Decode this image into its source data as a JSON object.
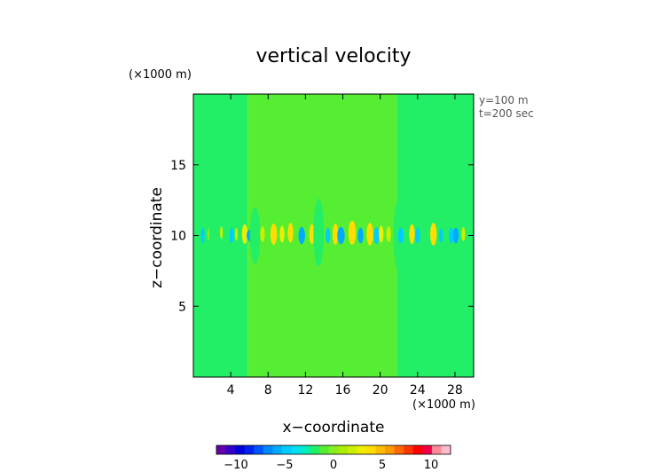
{
  "chart_data": {
    "type": "heatmap",
    "title": "vertical velocity",
    "xlabel": "x−coordinate",
    "ylabel": "z−coordinate",
    "x_unit": "(×1000 m)",
    "y_unit": "(×1000 m)",
    "annotations": [
      "y=100 m",
      "t=200 sec"
    ],
    "xlim": [
      0,
      30
    ],
    "ylim": [
      0,
      20
    ],
    "xticks": [
      4,
      8,
      12,
      16,
      20,
      24,
      28
    ],
    "xtick_labels": [
      "4",
      "8",
      "12",
      "16",
      "20",
      "24",
      "28"
    ],
    "yticks": [
      5,
      10,
      15
    ],
    "ytick_labels": [
      "5",
      "10",
      "15"
    ],
    "grid": false,
    "colorbar": {
      "range": [
        -12,
        12
      ],
      "ticks": [
        -10,
        -5,
        0,
        5,
        10
      ],
      "tick_labels": [
        "−10",
        "−5",
        "0",
        "5",
        "10"
      ],
      "colors": [
        "#6600aa",
        "#3300cc",
        "#0000dd",
        "#0022ee",
        "#0055ff",
        "#0088ff",
        "#00aaff",
        "#00ccff",
        "#00e0f0",
        "#00eebb",
        "#22ee66",
        "#55ee33",
        "#88ee22",
        "#aaee00",
        "#ccee00",
        "#eeee00",
        "#ffdd00",
        "#ffbb00",
        "#ff9900",
        "#ff6600",
        "#ff3300",
        "#ff0000",
        "#ee0044",
        "#ff8899",
        "#ffbbcc"
      ]
    },
    "background_regions": [
      {
        "x": [
          0,
          5.8
        ],
        "value": 0,
        "color": "#22ee66"
      },
      {
        "x": [
          5.8,
          21.8
        ],
        "value": 1,
        "color": "#55ee33"
      },
      {
        "x": [
          21.8,
          30
        ],
        "value": 0,
        "color": "#22ee66"
      }
    ],
    "features": [
      {
        "x": 1.0,
        "z": 10.0,
        "w": 0.2,
        "h": 0.55,
        "value": -2,
        "color": "#00ccff"
      },
      {
        "x": 1.7,
        "z": 10.1,
        "w": 0.18,
        "h": 0.45,
        "value": 3,
        "color": "#ccee00"
      },
      {
        "x": 2.2,
        "z": 9.9,
        "w": 0.2,
        "h": 0.55,
        "value": -2,
        "color": "#00ccff"
      },
      {
        "x": 2.1,
        "z": 10.2,
        "w": 0.45,
        "h": 2.1,
        "value": 0,
        "color": "#22ee66"
      },
      {
        "x": 3.0,
        "z": 10.2,
        "w": 0.15,
        "h": 0.45,
        "value": 3,
        "color": "#ccee00"
      },
      {
        "x": 4.1,
        "z": 10.0,
        "w": 0.22,
        "h": 0.55,
        "value": -2,
        "color": "#00ccff"
      },
      {
        "x": 4.6,
        "z": 10.1,
        "w": 0.15,
        "h": 0.45,
        "value": 3,
        "color": "#ccee00"
      },
      {
        "x": 5.5,
        "z": 10.1,
        "w": 0.3,
        "h": 0.7,
        "value": 5,
        "color": "#eeee00"
      },
      {
        "x": 6.3,
        "z": 10.0,
        "w": 0.6,
        "h": 0.5,
        "value": -3,
        "color": "#00aaff"
      },
      {
        "x": 6.6,
        "z": 10.0,
        "w": 0.55,
        "h": 2.0,
        "value": 0,
        "color": "#22ee66"
      },
      {
        "x": 7.4,
        "z": 10.1,
        "w": 0.25,
        "h": 0.55,
        "value": 4,
        "color": "#ccee00"
      },
      {
        "x": 8.6,
        "z": 10.1,
        "w": 0.35,
        "h": 0.75,
        "value": 6,
        "color": "#ffdd00"
      },
      {
        "x": 9.5,
        "z": 10.1,
        "w": 0.25,
        "h": 0.6,
        "value": 4,
        "color": "#eeee00"
      },
      {
        "x": 10.4,
        "z": 10.2,
        "w": 0.3,
        "h": 0.7,
        "value": 5,
        "color": "#ffdd00"
      },
      {
        "x": 11.6,
        "z": 10.0,
        "w": 0.35,
        "h": 0.6,
        "value": -3,
        "color": "#00aaff"
      },
      {
        "x": 12.7,
        "z": 10.1,
        "w": 0.3,
        "h": 0.7,
        "value": 6,
        "color": "#ffdd00"
      },
      {
        "x": 13.4,
        "z": 10.2,
        "w": 0.55,
        "h": 2.4,
        "value": 0,
        "color": "#22ee66"
      },
      {
        "x": 14.4,
        "z": 10.0,
        "w": 0.25,
        "h": 0.55,
        "value": -2,
        "color": "#00ccff"
      },
      {
        "x": 15.2,
        "z": 10.1,
        "w": 0.3,
        "h": 0.75,
        "value": 6,
        "color": "#ffdd00"
      },
      {
        "x": 15.8,
        "z": 10.0,
        "w": 0.4,
        "h": 0.6,
        "value": -3,
        "color": "#00aaff"
      },
      {
        "x": 17.0,
        "z": 10.2,
        "w": 0.4,
        "h": 0.85,
        "value": 8,
        "color": "#ffdd00"
      },
      {
        "x": 17.9,
        "z": 10.0,
        "w": 0.3,
        "h": 0.55,
        "value": -3,
        "color": "#00aaff"
      },
      {
        "x": 18.9,
        "z": 10.1,
        "w": 0.35,
        "h": 0.8,
        "value": 7,
        "color": "#ffdd00"
      },
      {
        "x": 19.6,
        "z": 10.0,
        "w": 0.3,
        "h": 0.6,
        "value": -2,
        "color": "#00ccff"
      },
      {
        "x": 20.1,
        "z": 10.1,
        "w": 0.25,
        "h": 0.6,
        "value": 4,
        "color": "#eeee00"
      },
      {
        "x": 20.9,
        "z": 10.1,
        "w": 0.25,
        "h": 0.55,
        "value": 3,
        "color": "#ccee00"
      },
      {
        "x": 22.3,
        "z": 10.0,
        "w": 0.9,
        "h": 2.9,
        "value": 0,
        "color": "#22ee66"
      },
      {
        "x": 22.2,
        "z": 10.0,
        "w": 0.3,
        "h": 0.55,
        "value": -2,
        "color": "#00ccff"
      },
      {
        "x": 23.4,
        "z": 10.1,
        "w": 0.3,
        "h": 0.7,
        "value": 5,
        "color": "#ffdd00"
      },
      {
        "x": 24.0,
        "z": 10.0,
        "w": 0.25,
        "h": 0.55,
        "value": -2,
        "color": "#00ccff"
      },
      {
        "x": 25.2,
        "z": 10.2,
        "w": 0.55,
        "h": 2.3,
        "value": 0,
        "color": "#22ee66"
      },
      {
        "x": 25.7,
        "z": 10.1,
        "w": 0.35,
        "h": 0.8,
        "value": 7,
        "color": "#ffdd00"
      },
      {
        "x": 26.5,
        "z": 10.0,
        "w": 0.2,
        "h": 0.5,
        "value": -2,
        "color": "#00ccff"
      },
      {
        "x": 27.6,
        "z": 10.0,
        "w": 0.25,
        "h": 0.55,
        "value": -2,
        "color": "#00ccff"
      },
      {
        "x": 28.1,
        "z": 10.0,
        "w": 0.3,
        "h": 0.55,
        "value": -3,
        "color": "#00aaff"
      },
      {
        "x": 28.9,
        "z": 10.1,
        "w": 0.2,
        "h": 0.5,
        "value": 3,
        "color": "#ccee00"
      }
    ]
  }
}
